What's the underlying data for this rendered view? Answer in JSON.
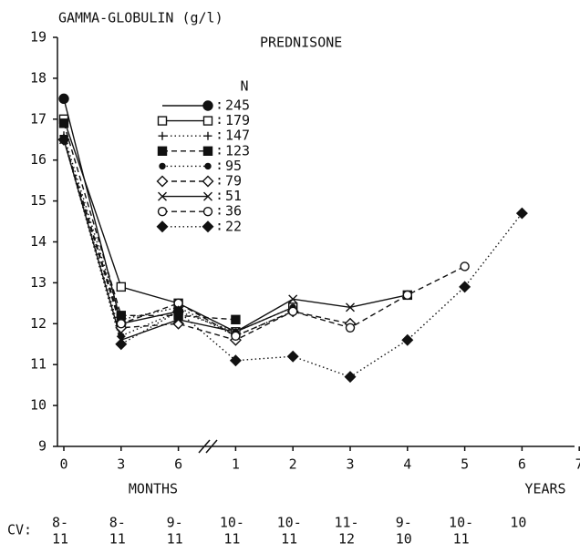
{
  "chart_data": {
    "type": "line",
    "y_label": "GAMMA-GLOBULIN (g/l)",
    "subtitle": "PREDNISONE",
    "legend_header": "N",
    "categories": [
      "0",
      "3",
      "6",
      "1",
      "2",
      "3",
      "4",
      "5",
      "6",
      "7"
    ],
    "x_unit_labels": [
      "MONTHS",
      "YEARS"
    ],
    "ylim": [
      9,
      19
    ],
    "yticks": [
      9,
      10,
      11,
      12,
      13,
      14,
      15,
      16,
      17,
      18,
      19
    ],
    "cv_label": "CV:",
    "cv": [
      {
        "top": "8-",
        "bottom": "11"
      },
      {
        "top": "8-",
        "bottom": "11"
      },
      {
        "top": "9-",
        "bottom": "11"
      },
      {
        "top": "10-",
        "bottom": "11"
      },
      {
        "top": "10-",
        "bottom": "11"
      },
      {
        "top": "11-",
        "bottom": "12"
      },
      {
        "top": "9-",
        "bottom": "10"
      },
      {
        "top": "10-",
        "bottom": "11"
      },
      {
        "top": "10"
      }
    ],
    "series": [
      {
        "n": "245",
        "marker": "circle-filled",
        "dash": "solid",
        "color": "#111",
        "values": [
          17.5,
          12.0,
          12.3,
          null,
          null,
          null,
          null,
          null,
          null,
          null
        ]
      },
      {
        "n": "179",
        "marker": "square-open",
        "dash": "solid",
        "color": "#111",
        "values": [
          17.0,
          12.9,
          12.5,
          11.8,
          12.4,
          null,
          12.7,
          null,
          null,
          null
        ]
      },
      {
        "n": "147",
        "marker": "plus",
        "dash": "dotted",
        "color": "#111",
        "values": [
          16.6,
          12.1,
          12.4,
          11.7,
          12.3,
          null,
          null,
          null,
          null,
          null
        ]
      },
      {
        "n": "123",
        "marker": "square-filled",
        "dash": "dashed",
        "color": "#111",
        "values": [
          16.9,
          12.2,
          12.2,
          12.1,
          null,
          null,
          null,
          null,
          null,
          null
        ]
      },
      {
        "n": "95",
        "marker": "dot",
        "dash": "dotted",
        "color": "#111",
        "values": [
          16.5,
          11.7,
          12.3,
          11.8,
          12.4,
          null,
          null,
          null,
          null,
          null
        ]
      },
      {
        "n": "79",
        "marker": "diamond-open",
        "dash": "dashed",
        "color": "#111",
        "values": [
          16.5,
          11.9,
          12.0,
          11.6,
          12.3,
          12.0,
          null,
          null,
          null,
          null
        ]
      },
      {
        "n": "51",
        "marker": "x",
        "dash": "solid",
        "color": "#111",
        "values": [
          16.5,
          11.6,
          12.1,
          11.8,
          12.6,
          12.4,
          12.7,
          null,
          null,
          null
        ]
      },
      {
        "n": "36",
        "marker": "circle-open",
        "dash": "dashed",
        "color": "#111",
        "values": [
          16.5,
          12.0,
          12.5,
          11.7,
          12.3,
          11.9,
          12.7,
          13.4,
          null,
          null
        ]
      },
      {
        "n": "22",
        "marker": "diamond-filled",
        "dash": "dotted",
        "color": "#111",
        "values": [
          16.5,
          11.5,
          12.3,
          11.1,
          11.2,
          10.7,
          11.6,
          12.9,
          14.7,
          null
        ]
      }
    ]
  }
}
